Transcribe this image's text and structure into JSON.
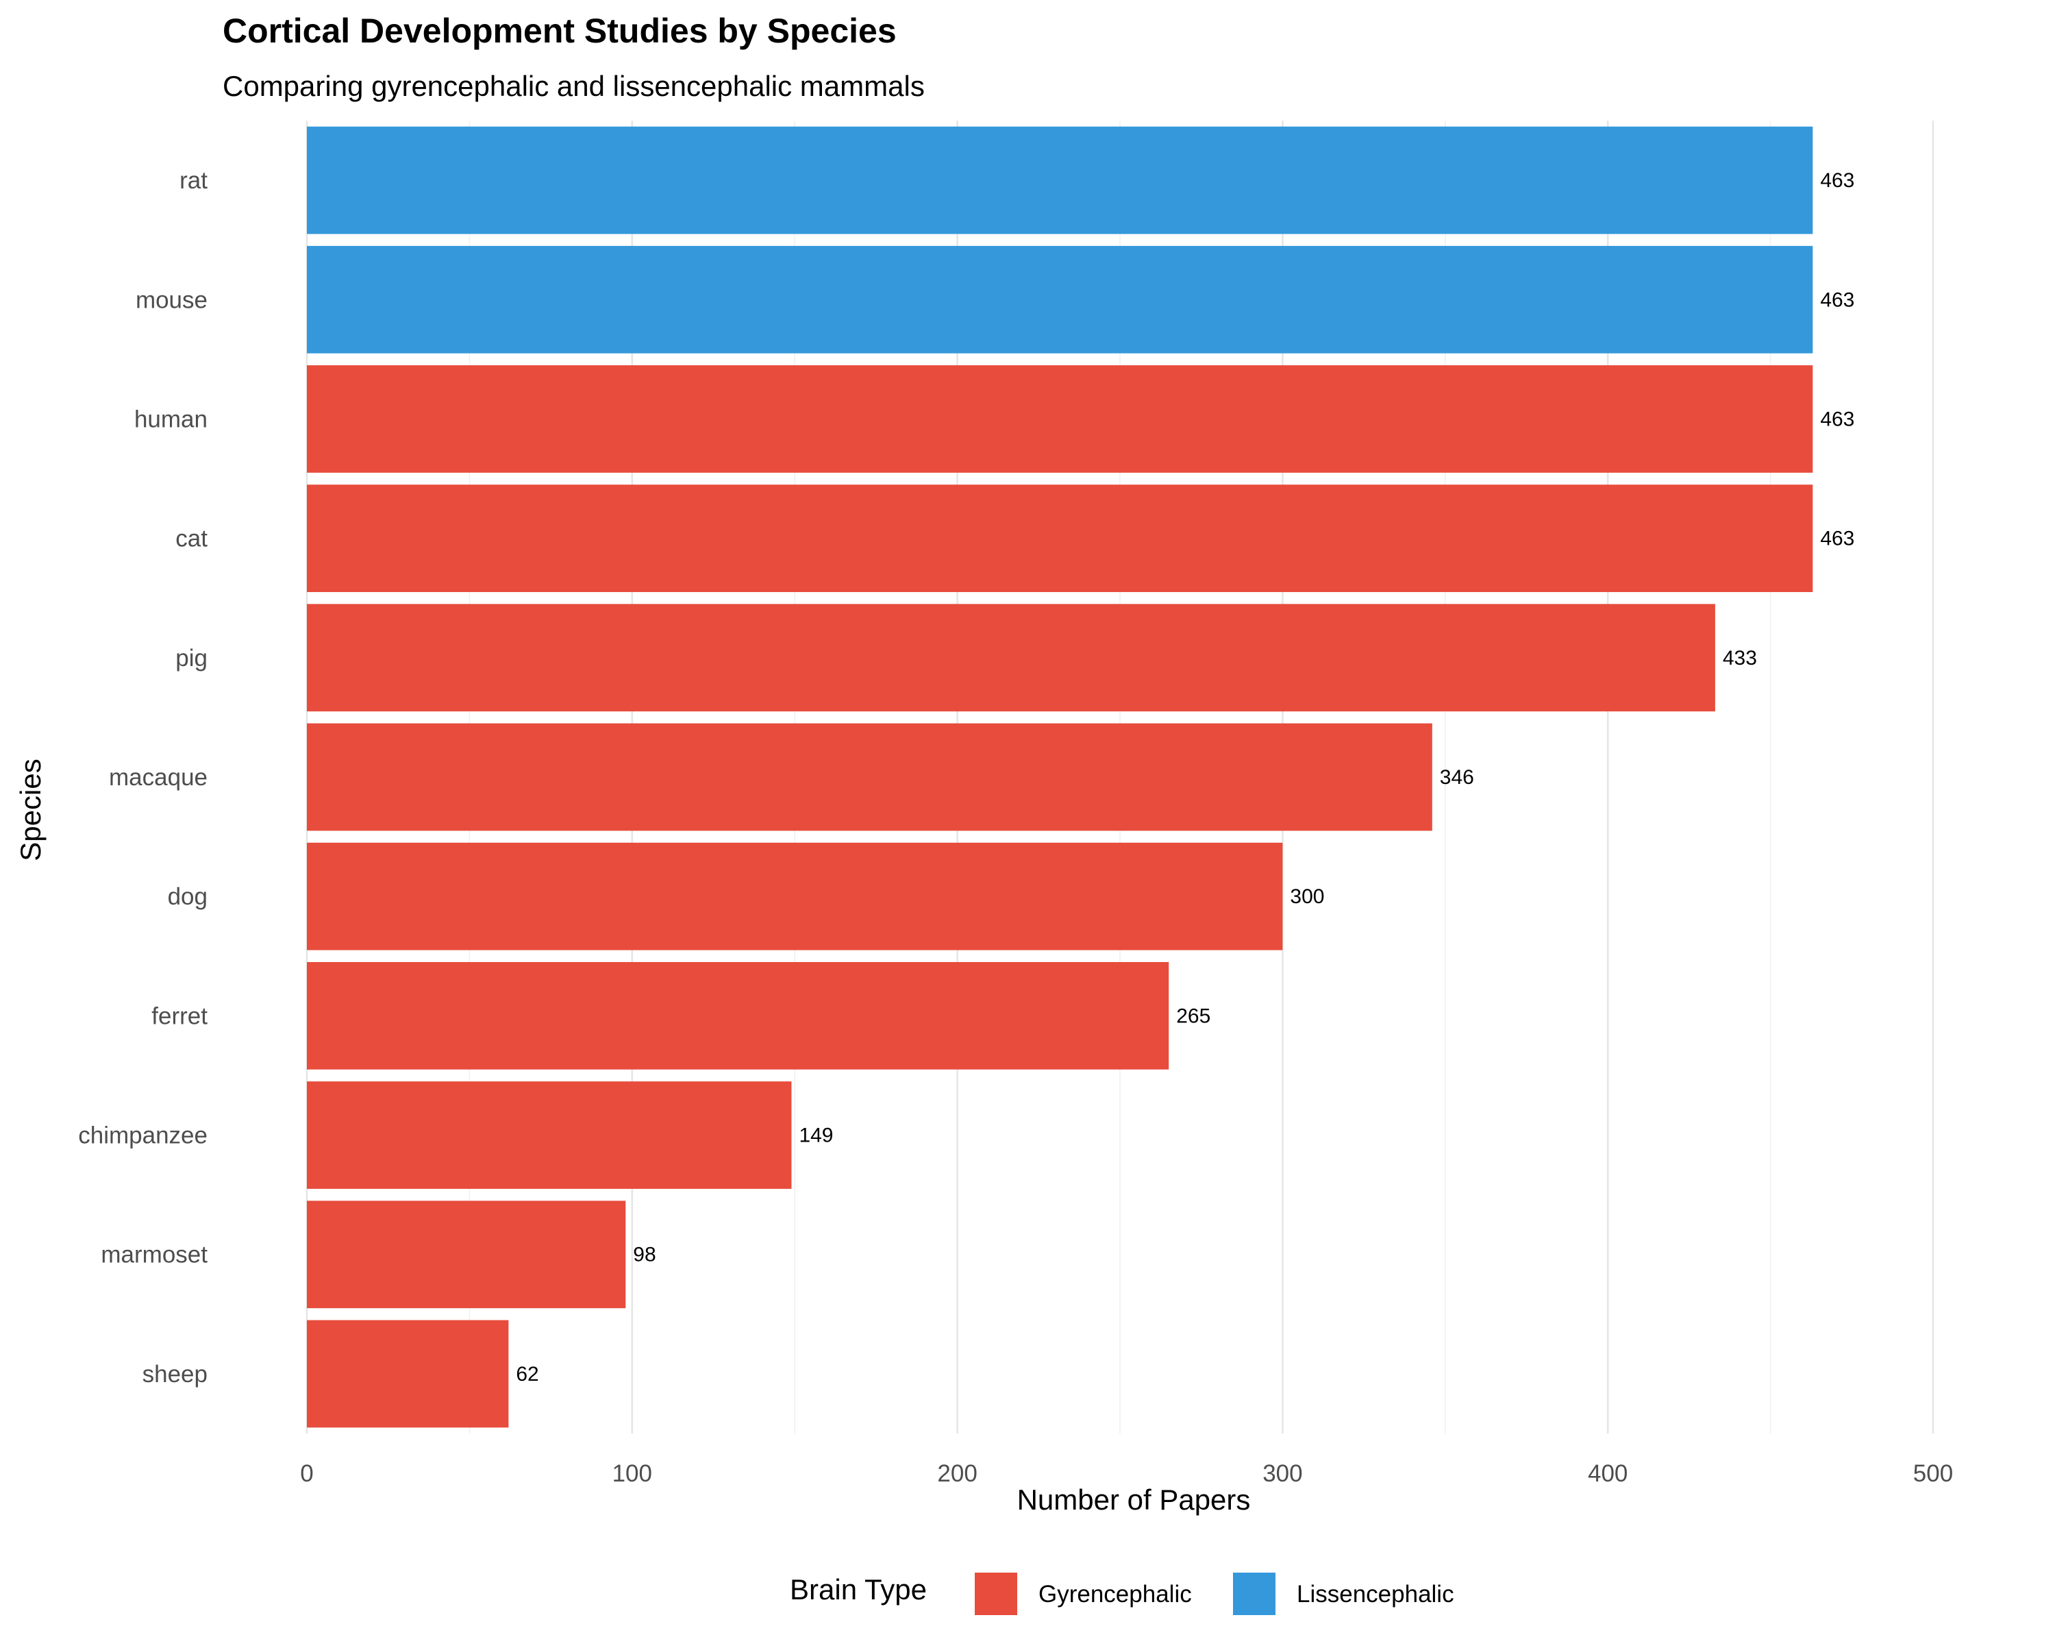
{
  "chart_data": {
    "type": "bar",
    "orientation": "horizontal",
    "title": "Cortical Development Studies by Species",
    "subtitle": "Comparing gyrencephalic and lissencephalic mammals",
    "xlabel": "Number of Papers",
    "ylabel": "Species",
    "xlim": [
      0,
      500
    ],
    "xticks": [
      "0",
      "100",
      "200",
      "300",
      "400",
      "500"
    ],
    "grid": true,
    "legend": {
      "title": "Brain Type",
      "position": "bottom",
      "entries": [
        {
          "label": "Gyrencephalic",
          "color": "#E74C3C"
        },
        {
          "label": "Lissencephalic",
          "color": "#3498DB"
        }
      ]
    },
    "categories": [
      "rat",
      "mouse",
      "human",
      "cat",
      "pig",
      "macaque",
      "dog",
      "ferret",
      "chimpanzee",
      "marmoset",
      "sheep"
    ],
    "values": [
      463,
      463,
      463,
      463,
      433,
      346,
      300,
      265,
      149,
      98,
      62
    ],
    "groups": [
      "Lissencephalic",
      "Lissencephalic",
      "Gyrencephalic",
      "Gyrencephalic",
      "Gyrencephalic",
      "Gyrencephalic",
      "Gyrencephalic",
      "Gyrencephalic",
      "Gyrencephalic",
      "Gyrencephalic",
      "Gyrencephalic"
    ],
    "data_labels": [
      "463",
      "463",
      "463",
      "463",
      "433",
      "346",
      "300",
      "265",
      "149",
      "98",
      "62"
    ]
  }
}
